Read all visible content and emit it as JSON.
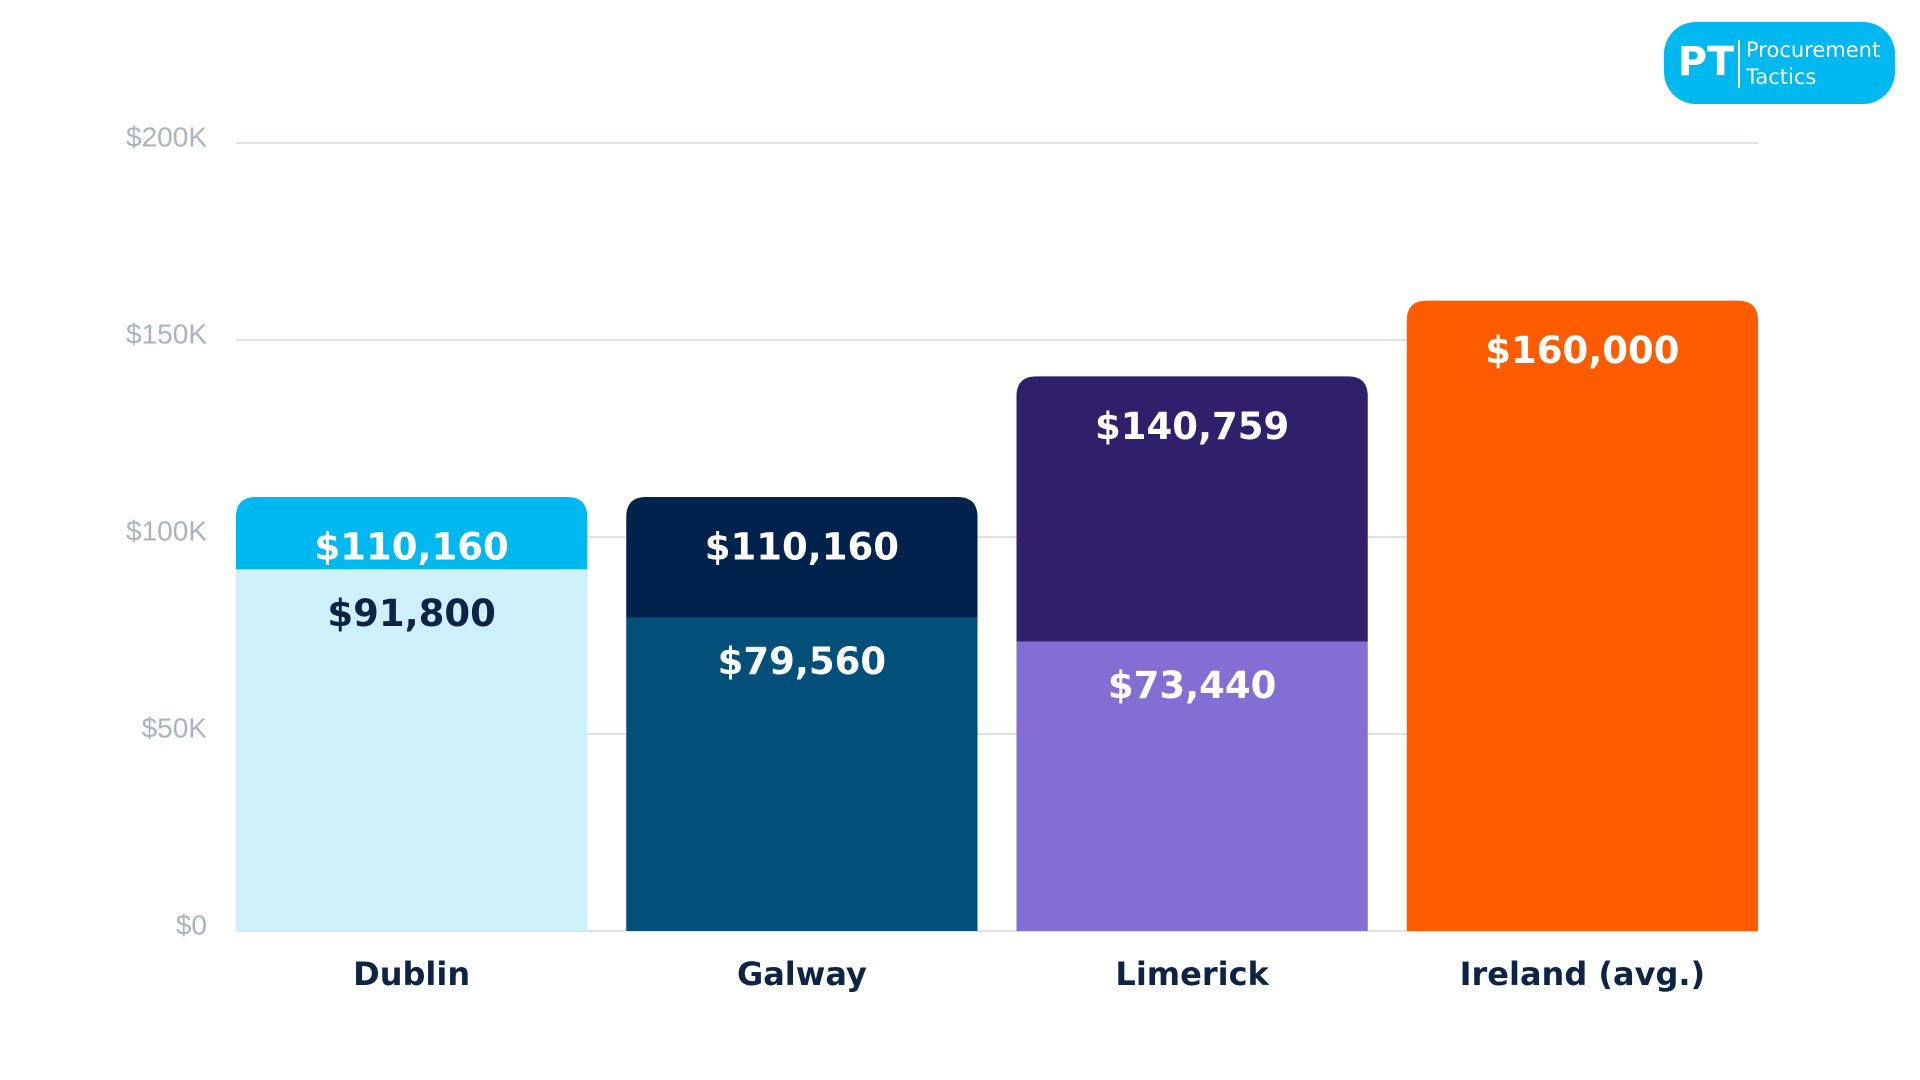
{
  "chart_data": {
    "type": "range-bar",
    "categories": [
      "Dublin",
      "Galway",
      "Limerick",
      "Ireland (avg.)"
    ],
    "series": [
      {
        "values": [
          91800,
          79560,
          73440,
          null
        ],
        "value_labels": [
          "$91,800",
          "$79,560",
          "$73,440",
          null
        ],
        "colors": [
          "#cdf0fa",
          "#024f7a",
          "#836fd3",
          null
        ],
        "label_colors": [
          "#0d2447",
          "#ffffff",
          "#ffffff",
          null
        ]
      },
      {
        "values": [
          110160,
          110160,
          140759,
          160000
        ],
        "value_labels": [
          "$110,160",
          "$110,160",
          "$140,759",
          "$160,000"
        ],
        "colors": [
          "#00b8f0",
          "#01224d",
          "#30206b",
          "#ff5c00"
        ],
        "label_colors": [
          "#ffffff",
          "#ffffff",
          "#ffffff",
          "#ffffff"
        ]
      }
    ],
    "ylim": [
      0,
      200000
    ],
    "yticks": [
      {
        "value": 0,
        "label": "$0"
      },
      {
        "value": 50000,
        "label": "$50K"
      },
      {
        "value": 100000,
        "label": "$100K"
      },
      {
        "value": 150000,
        "label": "$150K"
      },
      {
        "value": 200000,
        "label": "$200K"
      }
    ],
    "grid": true,
    "logo": {
      "mark": "PT",
      "lines": [
        "Procurement",
        "Tactics"
      ]
    }
  }
}
